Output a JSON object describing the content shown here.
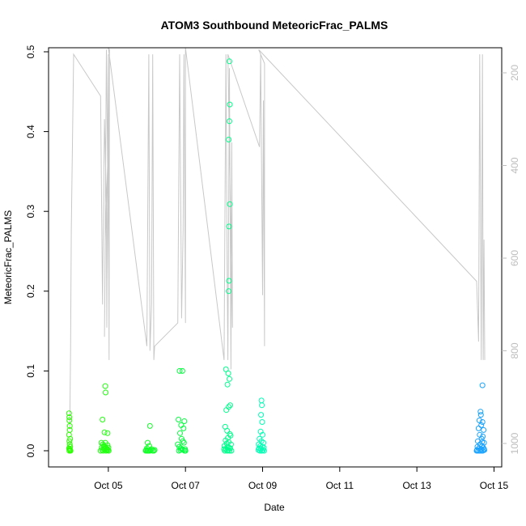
{
  "chart_data": {
    "type": "scatter",
    "title": "ATOM3 Southbound MeteoricFrac_PALMS",
    "xlabel": "Date",
    "ylabel": "MeteoricFrac_PALMS",
    "xlim": [
      3.45,
      15.2
    ],
    "ylim": [
      0,
      0.5
    ],
    "y_ticks": [
      0.0,
      0.1,
      0.2,
      0.3,
      0.4,
      0.5
    ],
    "y_tick_labels": [
      "0.0",
      "0.1",
      "0.2",
      "0.3",
      "0.4",
      "0.5"
    ],
    "x_ticks": [
      5,
      7,
      9,
      11,
      13,
      15
    ],
    "x_tick_labels": [
      "Oct 05",
      "Oct 07",
      "Oct 09",
      "Oct 11",
      "Oct 13",
      "Oct 15"
    ],
    "secondary_axis": {
      "side": "right",
      "reversed": true,
      "range": [
        150,
        1030
      ],
      "ticks": [
        200,
        400,
        600,
        800,
        1000
      ],
      "tick_labels": [
        "200",
        "400",
        "600",
        "800",
        "1000"
      ],
      "color": "#bdbdbd"
    },
    "trace_color": "#c8c8c8",
    "pressure_trace": [
      [
        4.0,
        970
      ],
      [
        4.02,
        800
      ],
      [
        4.04,
        540
      ],
      [
        4.1,
        160
      ],
      [
        4.8,
        250
      ],
      [
        4.85,
        700
      ],
      [
        4.87,
        520
      ],
      [
        4.9,
        300
      ],
      [
        4.95,
        480
      ],
      [
        4.96,
        750
      ],
      [
        5.0,
        160
      ],
      [
        5.02,
        700
      ],
      [
        4.95,
        150
      ],
      [
        4.9,
        770
      ],
      [
        4.92,
        560
      ],
      [
        5.0,
        350
      ],
      [
        5.02,
        820
      ],
      [
        5.03,
        150
      ],
      [
        5.0,
        120
      ],
      [
        6.0,
        790
      ],
      [
        6.05,
        160
      ],
      [
        6.08,
        800
      ],
      [
        6.12,
        700
      ],
      [
        6.15,
        160
      ],
      [
        6.18,
        820
      ],
      [
        6.2,
        790
      ],
      [
        6.8,
        740
      ],
      [
        6.85,
        160
      ],
      [
        6.9,
        730
      ],
      [
        6.94,
        540
      ],
      [
        6.96,
        160
      ],
      [
        7.0,
        740
      ],
      [
        7.0,
        130
      ],
      [
        8.0,
        820
      ],
      [
        8.05,
        160
      ],
      [
        8.08,
        620
      ],
      [
        8.1,
        820
      ],
      [
        8.14,
        190
      ],
      [
        8.18,
        840
      ],
      [
        8.2,
        350
      ],
      [
        8.22,
        750
      ],
      [
        8.1,
        160
      ],
      [
        8.92,
        360
      ],
      [
        8.95,
        160
      ],
      [
        9.0,
        680
      ],
      [
        9.02,
        260
      ],
      [
        9.05,
        790
      ],
      [
        9.05,
        180
      ],
      [
        8.9,
        150
      ],
      [
        14.55,
        650
      ],
      [
        14.6,
        780
      ],
      [
        14.63,
        160
      ],
      [
        14.67,
        820
      ],
      [
        14.7,
        160
      ],
      [
        14.72,
        820
      ],
      [
        14.74,
        560
      ],
      [
        14.76,
        820
      ]
    ],
    "series": [
      {
        "color": "#2bff00",
        "points": [
          [
            3.98,
            0.047
          ],
          [
            3.99,
            0.042
          ],
          [
            3.99,
            0.038
          ],
          [
            4.0,
            0.031
          ],
          [
            4.0,
            0.026
          ],
          [
            3.98,
            0.02
          ],
          [
            4.01,
            0.015
          ],
          [
            3.99,
            0.012
          ],
          [
            4.0,
            0.008
          ],
          [
            4.01,
            0.005
          ],
          [
            3.98,
            0.003
          ],
          [
            4.0,
            0.002
          ],
          [
            4.01,
            0.001
          ],
          [
            3.99,
            0.0
          ],
          [
            4.02,
            0.0
          ]
        ]
      },
      {
        "color": "#22ff10",
        "points": [
          [
            4.85,
            0.039
          ],
          [
            4.92,
            0.081
          ],
          [
            4.93,
            0.073
          ],
          [
            4.9,
            0.023
          ],
          [
            4.98,
            0.022
          ],
          [
            4.82,
            0.01
          ],
          [
            4.86,
            0.008
          ],
          [
            4.88,
            0.006
          ],
          [
            4.91,
            0.005
          ],
          [
            4.93,
            0.004
          ],
          [
            4.95,
            0.003
          ],
          [
            4.97,
            0.002
          ],
          [
            4.99,
            0.001
          ],
          [
            5.01,
            0.0
          ],
          [
            4.8,
            0.0
          ],
          [
            4.84,
            0.001
          ],
          [
            4.87,
            0.0
          ],
          [
            4.89,
            0.002
          ],
          [
            4.94,
            0.0
          ],
          [
            4.96,
            0.001
          ],
          [
            5.0,
            0.004
          ],
          [
            4.83,
            0.004
          ],
          [
            4.98,
            0.007
          ],
          [
            4.92,
            0.01
          ]
        ]
      },
      {
        "color": "#12ff28",
        "points": [
          [
            6.08,
            0.031
          ],
          [
            6.02,
            0.01
          ],
          [
            6.06,
            0.006
          ],
          [
            6.0,
            0.003
          ],
          [
            5.98,
            0.001
          ],
          [
            6.03,
            0.0
          ],
          [
            6.05,
            0.0
          ],
          [
            6.1,
            0.001
          ],
          [
            6.12,
            0.002
          ],
          [
            6.15,
            0.0
          ],
          [
            6.18,
            0.0
          ],
          [
            6.2,
            0.001
          ],
          [
            6.08,
            0.0
          ],
          [
            6.01,
            0.0
          ],
          [
            5.97,
            0.0
          ]
        ]
      },
      {
        "color": "#06ff40",
        "points": [
          [
            6.85,
            0.1
          ],
          [
            6.92,
            0.1
          ],
          [
            6.82,
            0.039
          ],
          [
            6.97,
            0.037
          ],
          [
            6.89,
            0.032
          ],
          [
            6.95,
            0.028
          ],
          [
            6.86,
            0.022
          ],
          [
            6.9,
            0.015
          ],
          [
            6.93,
            0.012
          ],
          [
            6.96,
            0.01
          ],
          [
            6.8,
            0.008
          ],
          [
            6.84,
            0.005
          ],
          [
            6.88,
            0.003
          ],
          [
            6.91,
            0.002
          ],
          [
            6.94,
            0.001
          ],
          [
            6.98,
            0.0
          ],
          [
            7.0,
            0.0
          ],
          [
            6.83,
            0.0
          ],
          [
            6.87,
            0.001
          ],
          [
            6.99,
            0.002
          ]
        ]
      },
      {
        "color": "#00ff8c",
        "points": [
          [
            8.14,
            0.488
          ],
          [
            8.15,
            0.434
          ],
          [
            8.14,
            0.413
          ],
          [
            8.12,
            0.39
          ],
          [
            8.15,
            0.309
          ],
          [
            8.13,
            0.281
          ],
          [
            8.13,
            0.213
          ],
          [
            8.12,
            0.2
          ],
          [
            8.05,
            0.102
          ],
          [
            8.11,
            0.097
          ],
          [
            8.14,
            0.09
          ],
          [
            8.09,
            0.083
          ],
          [
            8.16,
            0.057
          ],
          [
            8.12,
            0.055
          ],
          [
            8.06,
            0.051
          ],
          [
            8.03,
            0.03
          ],
          [
            8.08,
            0.025
          ],
          [
            8.15,
            0.021
          ],
          [
            8.17,
            0.019
          ],
          [
            8.1,
            0.016
          ],
          [
            8.04,
            0.013
          ],
          [
            8.12,
            0.011
          ],
          [
            8.07,
            0.009
          ],
          [
            8.18,
            0.008
          ],
          [
            8.01,
            0.006
          ],
          [
            8.09,
            0.005
          ],
          [
            8.13,
            0.004
          ],
          [
            8.16,
            0.003
          ],
          [
            8.05,
            0.002
          ],
          [
            8.11,
            0.001
          ],
          [
            8.02,
            0.0
          ],
          [
            8.08,
            0.0
          ],
          [
            8.14,
            0.0
          ],
          [
            8.19,
            0.0
          ],
          [
            8.0,
            0.002
          ]
        ]
      },
      {
        "color": "#00ffb4",
        "points": [
          [
            8.97,
            0.063
          ],
          [
            8.98,
            0.057
          ],
          [
            8.96,
            0.045
          ],
          [
            8.99,
            0.036
          ],
          [
            8.95,
            0.024
          ],
          [
            9.0,
            0.02
          ],
          [
            8.92,
            0.015
          ],
          [
            8.97,
            0.012
          ],
          [
            9.02,
            0.01
          ],
          [
            8.9,
            0.008
          ],
          [
            8.94,
            0.006
          ],
          [
            8.99,
            0.005
          ],
          [
            9.03,
            0.004
          ],
          [
            8.91,
            0.003
          ],
          [
            8.96,
            0.002
          ],
          [
            9.01,
            0.001
          ],
          [
            8.93,
            0.0
          ],
          [
            8.98,
            0.0
          ],
          [
            9.04,
            0.0
          ],
          [
            8.89,
            0.001
          ]
        ]
      },
      {
        "color": "#1aa3ff",
        "points": [
          [
            14.7,
            0.082
          ],
          [
            14.65,
            0.049
          ],
          [
            14.66,
            0.045
          ],
          [
            14.62,
            0.038
          ],
          [
            14.7,
            0.036
          ],
          [
            14.67,
            0.032
          ],
          [
            14.6,
            0.028
          ],
          [
            14.73,
            0.026
          ],
          [
            14.63,
            0.02
          ],
          [
            14.71,
            0.018
          ],
          [
            14.68,
            0.015
          ],
          [
            14.58,
            0.012
          ],
          [
            14.74,
            0.01
          ],
          [
            14.64,
            0.008
          ],
          [
            14.69,
            0.006
          ],
          [
            14.57,
            0.005
          ],
          [
            14.72,
            0.004
          ],
          [
            14.61,
            0.003
          ],
          [
            14.66,
            0.002
          ],
          [
            14.75,
            0.001
          ],
          [
            14.55,
            0.0
          ],
          [
            14.59,
            0.0
          ],
          [
            14.63,
            0.0
          ],
          [
            14.67,
            0.0
          ],
          [
            14.71,
            0.0
          ],
          [
            14.74,
            0.002
          ],
          [
            14.56,
            0.001
          ],
          [
            14.69,
            0.011
          ]
        ]
      }
    ]
  }
}
